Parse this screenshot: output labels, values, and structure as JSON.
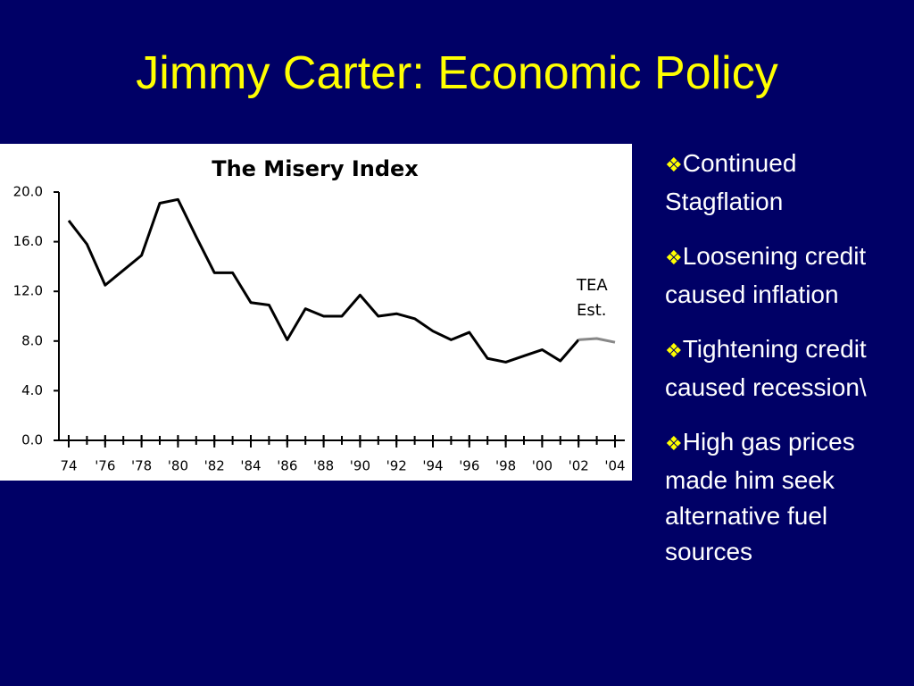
{
  "title": "Jimmy Carter: Economic Policy",
  "bullets": [
    "Continued Stagflation",
    "Loosening credit caused inflation",
    "Tightening credit caused recession\\",
    "High gas prices made him seek alternative fuel sources"
  ],
  "chart_data": {
    "type": "line",
    "title": "The Misery Index",
    "annotation": "TEA Est.",
    "x": [
      1974,
      1975,
      1976,
      1977,
      1978,
      1979,
      1980,
      1981,
      1982,
      1983,
      1984,
      1985,
      1986,
      1987,
      1988,
      1989,
      1990,
      1991,
      1992,
      1993,
      1994,
      1995,
      1996,
      1997,
      1998,
      1999,
      2000,
      2001,
      2002,
      2003,
      2004
    ],
    "series": [
      {
        "color": "#000000",
        "values": [
          17.7,
          15.8,
          12.5,
          13.7,
          14.9,
          19.1,
          19.4,
          16.4,
          13.5,
          13.5,
          11.1,
          10.9,
          8.1,
          10.6,
          10.0,
          10.0,
          11.7,
          10.0,
          10.2,
          9.8,
          8.8,
          8.1,
          8.7,
          6.6,
          6.3,
          6.8,
          7.3,
          6.4,
          8.1,
          null,
          null
        ]
      },
      {
        "color": "#888888",
        "values": [
          null,
          null,
          null,
          null,
          null,
          null,
          null,
          null,
          null,
          null,
          null,
          null,
          null,
          null,
          null,
          null,
          null,
          null,
          null,
          null,
          null,
          null,
          null,
          null,
          null,
          null,
          null,
          null,
          8.1,
          8.2,
          7.9
        ]
      }
    ],
    "xlim": [
      1974,
      2004
    ],
    "xticks": [
      {
        "value": 1974,
        "label": "74"
      },
      {
        "value": 1976,
        "label": "'76"
      },
      {
        "value": 1978,
        "label": "'78"
      },
      {
        "value": 1980,
        "label": "'80"
      },
      {
        "value": 1982,
        "label": "'82"
      },
      {
        "value": 1984,
        "label": "'84"
      },
      {
        "value": 1986,
        "label": "'86"
      },
      {
        "value": 1988,
        "label": "'88"
      },
      {
        "value": 1990,
        "label": "'90"
      },
      {
        "value": 1992,
        "label": "'92"
      },
      {
        "value": 1994,
        "label": "'94"
      },
      {
        "value": 1996,
        "label": "'96"
      },
      {
        "value": 1998,
        "label": "'98"
      },
      {
        "value": 2000,
        "label": "'00"
      },
      {
        "value": 2002,
        "label": "'02"
      },
      {
        "value": 2004,
        "label": "'04"
      }
    ],
    "ylim": [
      0,
      20
    ],
    "yticks": [
      {
        "value": 0,
        "label": "0.0"
      },
      {
        "value": 4,
        "label": "4.0"
      },
      {
        "value": 8,
        "label": "8.0"
      },
      {
        "value": 12,
        "label": "12.0"
      },
      {
        "value": 16,
        "label": "16.0"
      },
      {
        "value": 20,
        "label": "20.0"
      }
    ]
  }
}
